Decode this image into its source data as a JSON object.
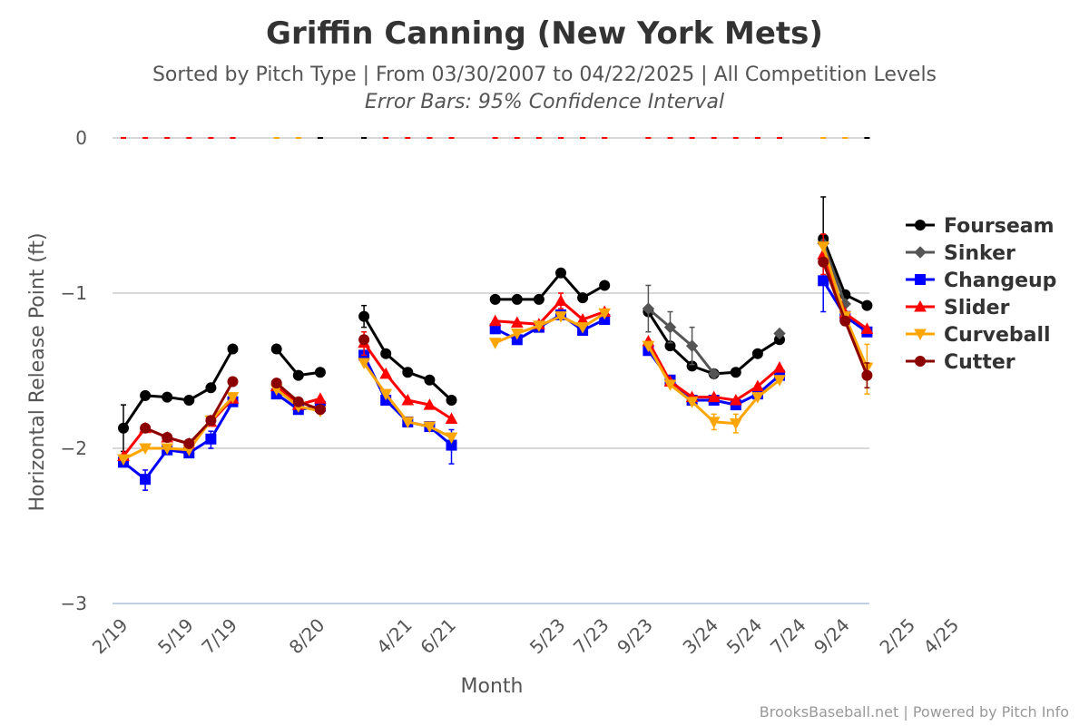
{
  "chart_data": {
    "type": "line",
    "title": "Griffin Canning (New York Mets)",
    "subtitle": "Sorted by Pitch Type | From 03/30/2007 to 04/22/2025 | All Competition Levels",
    "subtitle2": "Error Bars: 95% Confidence Interval",
    "xlabel": "Month",
    "ylabel": "Horizontal Release Point (ft)",
    "ylim": [
      -3,
      0
    ],
    "yticks": [
      0,
      -1,
      -2,
      -3
    ],
    "grid": true,
    "legend_position": "right",
    "x": [
      "2/19",
      "3/19",
      "4/19",
      "5/19",
      "6/19",
      "7/19",
      "8/19",
      "",
      "7/20",
      "8/20",
      "9/20",
      "",
      "",
      "4/21",
      "5/21",
      "6/21",
      "7/21",
      "8/21",
      "",
      "",
      "5/23",
      "6/23",
      "7/23",
      "8/23",
      "9/23",
      "",
      "",
      "3/24",
      "4/24",
      "5/24",
      "6/24",
      "7/24",
      "8/24",
      "9/24",
      "",
      "",
      "2/25",
      "3/25",
      "4/25"
    ],
    "xtick_labels": [
      {
        "i": 0,
        "label": "2/19"
      },
      {
        "i": 3,
        "label": "5/19"
      },
      {
        "i": 5,
        "label": "7/19"
      },
      {
        "i": 9,
        "label": "8/20"
      },
      {
        "i": 13,
        "label": "4/21"
      },
      {
        "i": 15,
        "label": "6/21"
      },
      {
        "i": 20,
        "label": "5/23"
      },
      {
        "i": 22,
        "label": "7/23"
      },
      {
        "i": 24,
        "label": "9/23"
      },
      {
        "i": 27,
        "label": "3/24"
      },
      {
        "i": 29,
        "label": "5/24"
      },
      {
        "i": 31,
        "label": "7/24"
      },
      {
        "i": 33,
        "label": "9/24"
      },
      {
        "i": 36,
        "label": "2/25"
      },
      {
        "i": 38,
        "label": "4/25"
      }
    ],
    "series": [
      {
        "name": "Fourseam",
        "color": "#000000",
        "marker": "circle",
        "segments": [
          [
            [
              0,
              -1.87
            ],
            [
              1,
              -1.66
            ],
            [
              2,
              -1.67
            ],
            [
              3,
              -1.69
            ],
            [
              4,
              -1.61
            ],
            [
              5,
              -1.36
            ]
          ],
          [
            [
              7,
              -1.36
            ],
            [
              8,
              -1.53
            ],
            [
              9,
              -1.51
            ]
          ],
          [
            [
              11,
              -1.15
            ],
            [
              12,
              -1.39
            ],
            [
              13,
              -1.51
            ],
            [
              14,
              -1.56
            ],
            [
              15,
              -1.69
            ]
          ],
          [
            [
              17,
              -1.04
            ],
            [
              18,
              -1.04
            ],
            [
              19,
              -1.04
            ],
            [
              20,
              -0.87
            ],
            [
              21,
              -1.03
            ],
            [
              22,
              -0.95
            ]
          ],
          [
            [
              24,
              -1.12
            ],
            [
              25,
              -1.34
            ],
            [
              26,
              -1.47
            ],
            [
              27,
              -1.52
            ],
            [
              28,
              -1.51
            ],
            [
              29,
              -1.39
            ],
            [
              30,
              -1.3
            ]
          ],
          [
            [
              32,
              -0.65
            ],
            [
              33,
              -1.01
            ],
            [
              34,
              -1.08
            ]
          ]
        ],
        "errors": [
          [
            0,
            -1.72,
            -2.02
          ],
          [
            11,
            -1.08,
            -1.22
          ],
          [
            32,
            -0.38,
            -0.92
          ]
        ]
      },
      {
        "name": "Sinker",
        "color": "#555555",
        "marker": "diamond",
        "segments": [
          [
            [
              24,
              -1.1
            ],
            [
              25,
              -1.22
            ],
            [
              26,
              -1.34
            ],
            [
              27,
              -1.52
            ]
          ],
          [
            [
              30,
              -1.26
            ]
          ],
          [
            [
              32,
              -0.68
            ],
            [
              33,
              -1.07
            ]
          ]
        ],
        "errors": [
          [
            24,
            -0.95,
            -1.25
          ],
          [
            25,
            -1.12,
            -1.32
          ],
          [
            26,
            -1.22,
            -1.46
          ]
        ]
      },
      {
        "name": "Changeup",
        "color": "#0000ff",
        "marker": "square",
        "segments": [
          [
            [
              0,
              -2.09
            ],
            [
              1,
              -2.2
            ],
            [
              2,
              -2.01
            ],
            [
              3,
              -2.03
            ],
            [
              4,
              -1.94
            ],
            [
              5,
              -1.7
            ]
          ],
          [
            [
              7,
              -1.65
            ],
            [
              8,
              -1.75
            ],
            [
              9,
              -1.73
            ]
          ],
          [
            [
              11,
              -1.4
            ],
            [
              12,
              -1.69
            ],
            [
              13,
              -1.83
            ],
            [
              14,
              -1.86
            ],
            [
              15,
              -1.98
            ]
          ],
          [
            [
              17,
              -1.23
            ],
            [
              18,
              -1.3
            ],
            [
              19,
              -1.22
            ],
            [
              20,
              -1.14
            ],
            [
              21,
              -1.24
            ],
            [
              22,
              -1.17
            ]
          ],
          [
            [
              24,
              -1.37
            ],
            [
              25,
              -1.56
            ],
            [
              26,
              -1.69
            ],
            [
              27,
              -1.69
            ],
            [
              28,
              -1.72
            ],
            [
              29,
              -1.65
            ],
            [
              30,
              -1.53
            ]
          ],
          [
            [
              32,
              -0.92
            ],
            [
              33,
              -1.15
            ],
            [
              34,
              -1.25
            ]
          ]
        ],
        "errors": [
          [
            1,
            -2.14,
            -2.27
          ],
          [
            4,
            -1.89,
            -2.0
          ],
          [
            15,
            -1.88,
            -2.1
          ],
          [
            32,
            -0.78,
            -1.12
          ]
        ]
      },
      {
        "name": "Slider",
        "color": "#ff0000",
        "marker": "triangle-up",
        "segments": [
          [
            [
              0,
              -2.05
            ],
            [
              1,
              -1.87
            ],
            [
              2,
              -1.93
            ],
            [
              3,
              -1.97
            ],
            [
              4,
              -1.83
            ],
            [
              5,
              -1.68
            ]
          ],
          [
            [
              7,
              -1.6
            ],
            [
              8,
              -1.72
            ],
            [
              9,
              -1.68
            ]
          ],
          [
            [
              11,
              -1.32
            ],
            [
              12,
              -1.52
            ],
            [
              13,
              -1.69
            ],
            [
              14,
              -1.72
            ],
            [
              15,
              -1.81
            ]
          ],
          [
            [
              17,
              -1.18
            ],
            [
              18,
              -1.19
            ],
            [
              19,
              -1.2
            ],
            [
              20,
              -1.05
            ],
            [
              21,
              -1.17
            ],
            [
              22,
              -1.12
            ]
          ],
          [
            [
              24,
              -1.31
            ],
            [
              25,
              -1.57
            ],
            [
              26,
              -1.67
            ],
            [
              27,
              -1.67
            ],
            [
              28,
              -1.69
            ],
            [
              29,
              -1.6
            ],
            [
              30,
              -1.48
            ]
          ],
          [
            [
              32,
              -0.75
            ],
            [
              33,
              -1.13
            ],
            [
              34,
              -1.23
            ]
          ]
        ],
        "errors": [
          [
            11,
            -1.25,
            -1.4
          ],
          [
            20,
            -1.0,
            -1.1
          ],
          [
            32,
            -0.62,
            -0.88
          ]
        ]
      },
      {
        "name": "Curveball",
        "color": "#ffa500",
        "marker": "triangle-down",
        "segments": [
          [
            [
              0,
              -2.07
            ],
            [
              1,
              -2.0
            ],
            [
              2,
              -2.0
            ],
            [
              3,
              -2.01
            ],
            [
              4,
              -1.82
            ],
            [
              5,
              -1.67
            ]
          ],
          [
            [
              7,
              -1.62
            ],
            [
              8,
              -1.73
            ],
            [
              9,
              -1.76
            ]
          ],
          [
            [
              11,
              -1.45
            ],
            [
              12,
              -1.65
            ],
            [
              13,
              -1.83
            ],
            [
              14,
              -1.86
            ],
            [
              15,
              -1.93
            ]
          ],
          [
            [
              17,
              -1.32
            ],
            [
              18,
              -1.26
            ],
            [
              19,
              -1.21
            ],
            [
              20,
              -1.15
            ],
            [
              21,
              -1.22
            ],
            [
              22,
              -1.13
            ]
          ],
          [
            [
              24,
              -1.34
            ],
            [
              25,
              -1.59
            ],
            [
              26,
              -1.7
            ],
            [
              27,
              -1.83
            ],
            [
              28,
              -1.84
            ],
            [
              29,
              -1.67
            ],
            [
              30,
              -1.56
            ]
          ],
          [
            [
              32,
              -0.7
            ],
            [
              33,
              -1.15
            ],
            [
              34,
              -1.48
            ]
          ]
        ],
        "errors": [
          [
            27,
            -1.78,
            -1.88
          ],
          [
            28,
            -1.78,
            -1.9
          ],
          [
            34,
            -1.33,
            -1.65
          ]
        ]
      },
      {
        "name": "Cutter",
        "color": "#8b0000",
        "marker": "circle",
        "segments": [
          [
            [
              1,
              -1.87
            ],
            [
              2,
              -1.93
            ],
            [
              3,
              -1.97
            ],
            [
              4,
              -1.82
            ],
            [
              5,
              -1.57
            ]
          ],
          [
            [
              7,
              -1.58
            ],
            [
              8,
              -1.7
            ],
            [
              9,
              -1.75
            ]
          ],
          [
            [
              11,
              -1.3
            ]
          ],
          [
            [
              32,
              -0.8
            ],
            [
              33,
              -1.18
            ],
            [
              34,
              -1.53
            ]
          ]
        ],
        "errors": [
          [
            34,
            -1.45,
            -1.61
          ]
        ]
      }
    ],
    "zero_line_dashes": [
      {
        "color": "#ff0000",
        "from": 0,
        "to": 5
      },
      {
        "color": "#ffa500",
        "from": 7,
        "to": 8
      },
      {
        "color": "#000000",
        "from": 9,
        "to": 9
      },
      {
        "color": "#000000",
        "from": 11,
        "to": 11
      },
      {
        "color": "#ff0000",
        "from": 12,
        "to": 15
      },
      {
        "color": "#ff0000",
        "from": 17,
        "to": 22
      },
      {
        "color": "#ff0000",
        "from": 24,
        "to": 30
      },
      {
        "color": "#ffa500",
        "from": 32,
        "to": 33
      },
      {
        "color": "#000000",
        "from": 34,
        "to": 34
      }
    ],
    "credits": "BrooksBaseball.net | Powered by Pitch Info"
  }
}
